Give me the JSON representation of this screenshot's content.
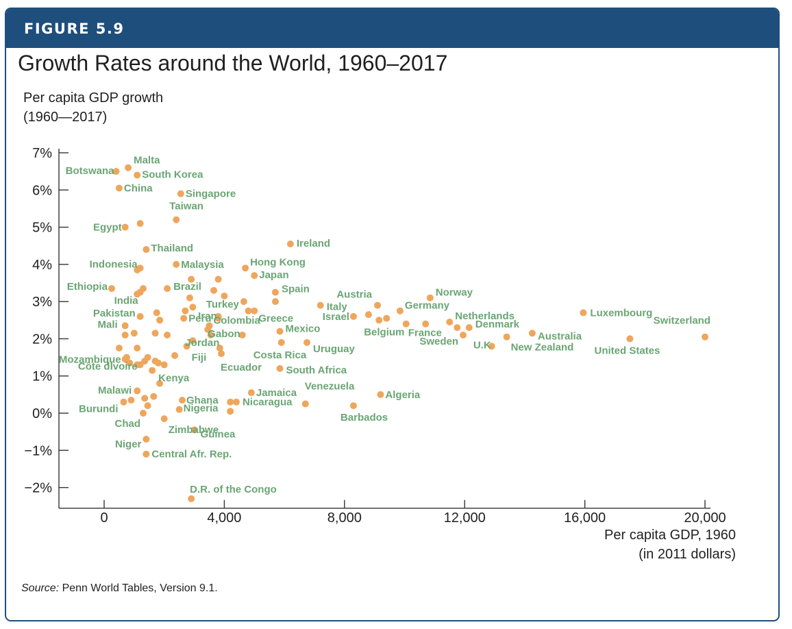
{
  "figure_label": "FIGURE 5.9",
  "source_label": "Source:",
  "source_text": " Penn World Tables, Version 9.1.",
  "colors": {
    "banner": "#1e4e7c",
    "dot": "#eea65c",
    "label": "#6aa573"
  },
  "chart_data": {
    "type": "scatter",
    "title": "Growth Rates around the World, 1960–2017",
    "ylabel": [
      "Per capita GDP growth",
      "(1960—2017)"
    ],
    "xlabel": [
      "Per capita GDP, 1960",
      "(in 2011 dollars)"
    ],
    "xlim": [
      -3000,
      20000
    ],
    "ylim": [
      -2.5,
      7.0
    ],
    "x_ticks": [
      0,
      4000,
      8000,
      12000,
      16000,
      20000
    ],
    "x_tick_labels": [
      "0",
      "4,000",
      "8,000",
      "12,000",
      "16,000",
      "20,000"
    ],
    "y_ticks": [
      7,
      6,
      5,
      4,
      3,
      2,
      1,
      0,
      -1,
      -2
    ],
    "y_tick_labels": [
      "7%",
      "6%",
      "5%",
      "4%",
      "3%",
      "2%",
      "1%",
      "0%",
      "−1%",
      "−2%"
    ],
    "grid": false,
    "labeled_points": [
      {
        "name": "Malta",
        "x": 800,
        "y": 6.6
      },
      {
        "name": "Botswana",
        "x": 400,
        "y": 6.5
      },
      {
        "name": "South Korea",
        "x": 1100,
        "y": 6.4
      },
      {
        "name": "China",
        "x": 500,
        "y": 6.05
      },
      {
        "name": "Singapore",
        "x": 2550,
        "y": 5.9
      },
      {
        "name": "Taiwan",
        "x": 2400,
        "y": 5.2
      },
      {
        "name": "Egypt",
        "x": 700,
        "y": 5.0
      },
      {
        "name": "Thailand",
        "x": 1400,
        "y": 4.4
      },
      {
        "name": "Ireland",
        "x": 6200,
        "y": 4.55
      },
      {
        "name": "Indonesia",
        "x": 1200,
        "y": 3.9
      },
      {
        "name": "Malaysia",
        "x": 2400,
        "y": 4.0
      },
      {
        "name": "Hong Kong",
        "x": 4700,
        "y": 3.9
      },
      {
        "name": "Japan",
        "x": 5000,
        "y": 3.7
      },
      {
        "name": "Ethiopia",
        "x": 250,
        "y": 3.35
      },
      {
        "name": "Brazil",
        "x": 2100,
        "y": 3.35
      },
      {
        "name": "Spain",
        "x": 5700,
        "y": 3.25
      },
      {
        "name": "India",
        "x": 1200,
        "y": 3.25
      },
      {
        "name": "Turkey",
        "x": 4650,
        "y": 3.0
      },
      {
        "name": "Italy",
        "x": 7200,
        "y": 2.9
      },
      {
        "name": "Austria",
        "x": 9100,
        "y": 2.9
      },
      {
        "name": "Germany",
        "x": 9850,
        "y": 2.75
      },
      {
        "name": "Norway",
        "x": 10850,
        "y": 3.1
      },
      {
        "name": "Pakistan",
        "x": 1200,
        "y": 2.6
      },
      {
        "name": "Iran",
        "x": 3800,
        "y": 2.6
      },
      {
        "name": "Peru",
        "x": 2650,
        "y": 2.55
      },
      {
        "name": "Israel",
        "x": 8300,
        "y": 2.6
      },
      {
        "name": "Colombia",
        "x": 3500,
        "y": 2.35
      },
      {
        "name": "Greece",
        "x": 5000,
        "y": 2.75
      },
      {
        "name": "Netherlands",
        "x": 11500,
        "y": 2.45
      },
      {
        "name": "Luxembourg",
        "x": 15950,
        "y": 2.7
      },
      {
        "name": "Mali",
        "x": 700,
        "y": 2.35
      },
      {
        "name": "Belgium",
        "x": 9150,
        "y": 2.5
      },
      {
        "name": "France",
        "x": 10050,
        "y": 2.4
      },
      {
        "name": "Denmark",
        "x": 12150,
        "y": 2.3
      },
      {
        "name": "Gabon",
        "x": 4600,
        "y": 2.1
      },
      {
        "name": "Mexico",
        "x": 5850,
        "y": 2.2
      },
      {
        "name": "Switzerland",
        "x": 20000,
        "y": 2.05
      },
      {
        "name": "Jordan",
        "x": 2950,
        "y": 1.95
      },
      {
        "name": "Sweden",
        "x": 11950,
        "y": 2.1
      },
      {
        "name": "U.K",
        "x": 12900,
        "y": 1.8
      },
      {
        "name": "Australia",
        "x": 14250,
        "y": 2.15
      },
      {
        "name": "Uruguay",
        "x": 6750,
        "y": 1.9
      },
      {
        "name": "Costa Rica",
        "x": 5900,
        "y": 1.9
      },
      {
        "name": "Fiji",
        "x": 2750,
        "y": 1.8
      },
      {
        "name": "New Zealand",
        "x": 13400,
        "y": 2.05
      },
      {
        "name": "United States",
        "x": 17500,
        "y": 2.0
      },
      {
        "name": "Mozambique",
        "x": 700,
        "y": 1.45
      },
      {
        "name": "Ecuador",
        "x": 3900,
        "y": 1.6
      },
      {
        "name": "Côte dIvoire",
        "x": 1200,
        "y": 1.3
      },
      {
        "name": "Kenya",
        "x": 1600,
        "y": 1.15
      },
      {
        "name": "South Africa",
        "x": 5850,
        "y": 1.2
      },
      {
        "name": "Malawi",
        "x": 1100,
        "y": 0.6
      },
      {
        "name": "Ghana",
        "x": 2600,
        "y": 0.35
      },
      {
        "name": "Jamaica",
        "x": 4900,
        "y": 0.55
      },
      {
        "name": "Venezuela",
        "x": 6700,
        "y": 0.25
      },
      {
        "name": "Algeria",
        "x": 9200,
        "y": 0.5
      },
      {
        "name": "Burundi",
        "x": 650,
        "y": 0.3
      },
      {
        "name": "Nigeria",
        "x": 2500,
        "y": 0.1
      },
      {
        "name": "Nicaragua",
        "x": 4400,
        "y": 0.3
      },
      {
        "name": "Barbados",
        "x": 8300,
        "y": 0.2
      },
      {
        "name": "Zimbabwe",
        "x": 2000,
        "y": -0.15
      },
      {
        "name": "Chad",
        "x": 1300,
        "y": 0.0
      },
      {
        "name": "Guinea",
        "x": 3000,
        "y": -0.45
      },
      {
        "name": "Niger",
        "x": 1400,
        "y": -0.7
      },
      {
        "name": "Central Afr. Rep.",
        "x": 1400,
        "y": -1.1
      },
      {
        "name": "D.R. of the Congo",
        "x": 2900,
        "y": -2.3
      }
    ],
    "unlabeled_points": [
      {
        "x": 1200,
        "y": 5.1
      },
      {
        "x": 1100,
        "y": 3.85
      },
      {
        "x": 2900,
        "y": 3.6
      },
      {
        "x": 3800,
        "y": 3.6
      },
      {
        "x": 1300,
        "y": 3.35
      },
      {
        "x": 1100,
        "y": 3.2
      },
      {
        "x": 3650,
        "y": 3.3
      },
      {
        "x": 4000,
        "y": 3.15
      },
      {
        "x": 2850,
        "y": 3.1
      },
      {
        "x": 5700,
        "y": 3.0
      },
      {
        "x": 2950,
        "y": 2.85
      },
      {
        "x": 4800,
        "y": 2.75
      },
      {
        "x": 2700,
        "y": 2.75
      },
      {
        "x": 1750,
        "y": 2.7
      },
      {
        "x": 3800,
        "y": 2.55
      },
      {
        "x": 1850,
        "y": 2.5
      },
      {
        "x": 8800,
        "y": 2.65
      },
      {
        "x": 9400,
        "y": 2.55
      },
      {
        "x": 3450,
        "y": 2.25
      },
      {
        "x": 1000,
        "y": 2.15
      },
      {
        "x": 700,
        "y": 2.1
      },
      {
        "x": 1700,
        "y": 2.15
      },
      {
        "x": 2100,
        "y": 2.1
      },
      {
        "x": 3550,
        "y": 2.1
      },
      {
        "x": 10700,
        "y": 2.4
      },
      {
        "x": 11750,
        "y": 2.3
      },
      {
        "x": 1100,
        "y": 1.75
      },
      {
        "x": 500,
        "y": 1.75
      },
      {
        "x": 3850,
        "y": 1.75
      },
      {
        "x": 2350,
        "y": 1.55
      },
      {
        "x": 1450,
        "y": 1.5
      },
      {
        "x": 750,
        "y": 1.5
      },
      {
        "x": 1350,
        "y": 1.4
      },
      {
        "x": 1700,
        "y": 1.4
      },
      {
        "x": 850,
        "y": 1.35
      },
      {
        "x": 1800,
        "y": 1.35
      },
      {
        "x": 1100,
        "y": 1.3
      },
      {
        "x": 2000,
        "y": 1.3
      },
      {
        "x": 1850,
        "y": 0.8
      },
      {
        "x": 1650,
        "y": 0.45
      },
      {
        "x": 1350,
        "y": 0.4
      },
      {
        "x": 900,
        "y": 0.35
      },
      {
        "x": 4200,
        "y": 0.3
      },
      {
        "x": 1450,
        "y": 0.2
      },
      {
        "x": 4200,
        "y": 0.05
      }
    ]
  }
}
